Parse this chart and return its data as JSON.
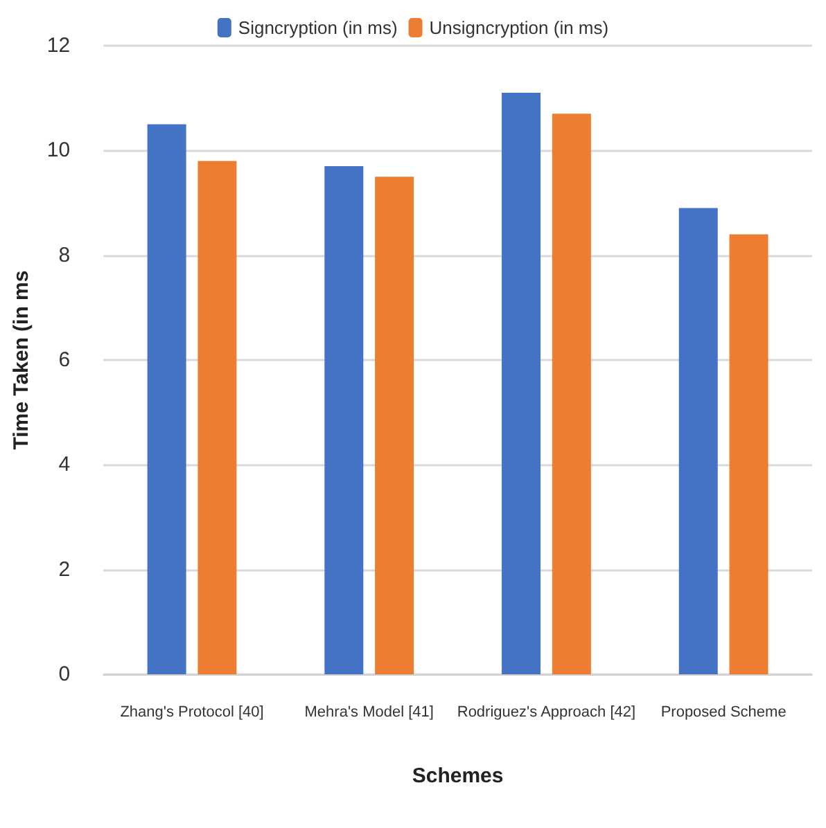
{
  "chart_data": {
    "type": "bar",
    "categories": [
      "Zhang's Protocol [40]",
      "Mehra's Model [41]",
      "Rodriguez's Approach [42]",
      "Proposed Scheme"
    ],
    "series": [
      {
        "name": "Signcryption (in ms)",
        "color": "#4472c4",
        "values": [
          10.5,
          9.7,
          11.1,
          8.9
        ]
      },
      {
        "name": "Unsigncryption (in ms)",
        "color": "#ed7d31",
        "values": [
          9.8,
          9.5,
          10.7,
          8.4
        ]
      }
    ],
    "xlabel": "Schemes",
    "ylabel": "Time Taken (in ms",
    "ylim": [
      0,
      12
    ],
    "yticks": [
      0,
      2,
      4,
      6,
      8,
      10,
      12
    ],
    "grid": "y",
    "legend": "top"
  }
}
